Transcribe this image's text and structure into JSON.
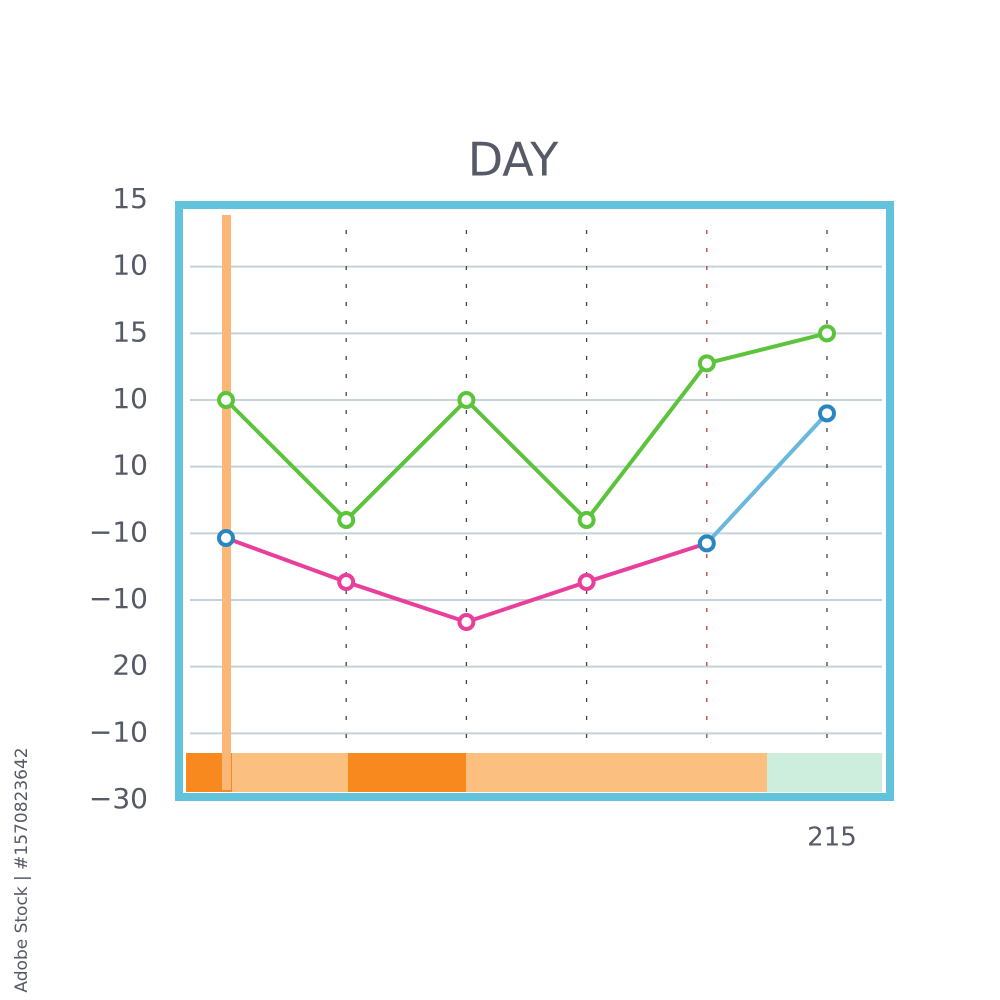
{
  "chart_data": {
    "type": "line",
    "title": "DAY",
    "annotation": "215",
    "watermark": "Adobe Stock | #1570823642",
    "categories": [
      null,
      null,
      null,
      null,
      null,
      null
    ],
    "series": [
      {
        "color": "#5cc43c",
        "values": [
          6,
          4.2,
          6,
          4.2,
          6.55,
          7
        ]
      },
      {
        "color": "#e8409a",
        "point_colors": [
          "#2a86c0",
          "#e8409a",
          "#e8409a",
          "#e8409a",
          "#2a86c0",
          "#2a86c0"
        ],
        "segment_colors": [
          "#e8409a",
          "#e8409a",
          "#e8409a",
          "#e8409a",
          "#6ab8dc"
        ],
        "values": [
          3.93,
          3.27,
          2.67,
          3.27,
          3.85,
          5.8
        ]
      }
    ],
    "ylim": [
      0,
      9
    ],
    "yticks": [
      {
        "value": 0,
        "label": "−30"
      },
      {
        "value": 1,
        "label": "−10"
      },
      {
        "value": 2,
        "label": "20"
      },
      {
        "value": 3,
        "label": "−10"
      },
      {
        "value": 4,
        "label": "−10"
      },
      {
        "value": 5,
        "label": "10"
      },
      {
        "value": 6,
        "label": "10"
      },
      {
        "value": 7,
        "label": "15"
      },
      {
        "value": 8,
        "label": "10"
      },
      {
        "value": 9,
        "label": "15"
      }
    ],
    "grid": true
  }
}
